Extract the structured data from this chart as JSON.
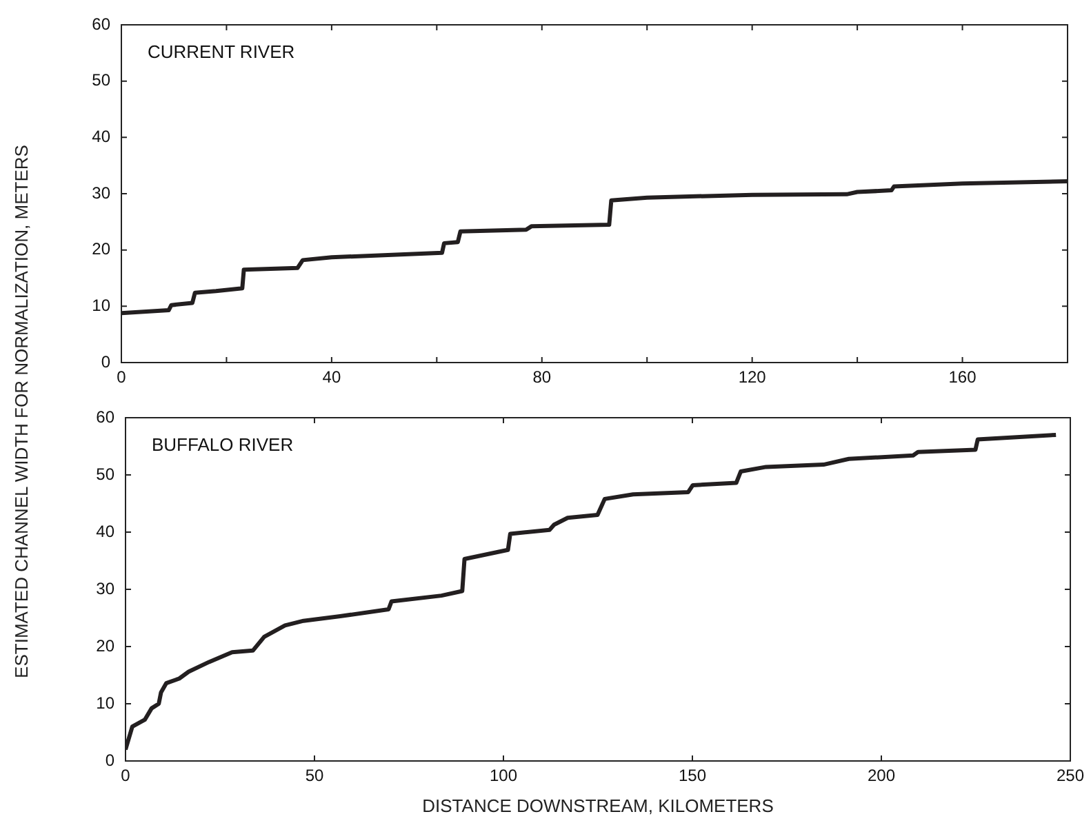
{
  "chart_data": [
    {
      "type": "line",
      "ylabel": "ESTIMATED CHANNEL WIDTH FOR NORMALIZATION, METERS",
      "annotations": [
        "CURRENT RIVER"
      ],
      "marker": "none",
      "xlim": [
        0,
        180
      ],
      "xticks": [
        0,
        {
          "value": 20,
          "label": null
        },
        40,
        {
          "value": 60,
          "label": null
        },
        80,
        {
          "value": 100,
          "label": null
        },
        120,
        {
          "value": 140,
          "label": null
        },
        160
      ],
      "ylim": [
        0,
        60
      ],
      "yticks": [
        0,
        10,
        20,
        30,
        40,
        50,
        60
      ],
      "series": [
        {
          "color": "#231f20",
          "x": [
            0,
            9,
            9.5,
            13.5,
            14,
            18,
            23,
            23.3,
            33.5,
            34.5,
            40,
            61,
            61.4,
            64,
            64.5,
            77,
            78,
            92.8,
            93.2,
            100,
            120,
            138,
            140,
            146.5,
            147,
            160,
            180
          ],
          "values": [
            8.8,
            9.3,
            10.2,
            10.6,
            12.4,
            12.7,
            13.2,
            16.5,
            16.8,
            18.2,
            18.7,
            19.5,
            21.2,
            21.4,
            23.3,
            23.6,
            24.2,
            24.5,
            28.8,
            29.3,
            29.8,
            29.9,
            30.3,
            30.6,
            31.3,
            31.8,
            32.2
          ]
        }
      ]
    },
    {
      "type": "line",
      "xlabel": "DISTANCE DOWNSTREAM, KILOMETERS",
      "annotations": [
        "BUFFALO RIVER"
      ],
      "marker": "none",
      "xlim": [
        0,
        250
      ],
      "xticks": [
        0,
        50,
        100,
        150,
        200,
        250
      ],
      "ylim": [
        0,
        60
      ],
      "yticks": [
        0,
        10,
        20,
        30,
        40,
        50,
        60
      ],
      "series": [
        {
          "color": "#231f20",
          "x": [
            0,
            1.8,
            5.1,
            6.9,
            8.8,
            9.4,
            10.8,
            14.2,
            16.7,
            22.1,
            28.2,
            33.7,
            36.7,
            42.2,
            47.1,
            56.8,
            69.6,
            70.4,
            83.6,
            89.1,
            89.7,
            101.2,
            101.8,
            112.2,
            113.4,
            117,
            124.9,
            126.8,
            134.3,
            148.9,
            150.1,
            161.6,
            162.8,
            169.5,
            184.7,
            191.4,
            208.4,
            209.7,
            224.9,
            225.5,
            246.2
          ],
          "values": [
            2.0,
            6.0,
            7.2,
            9.2,
            10.0,
            12.0,
            13.6,
            14.4,
            15.6,
            17.3,
            19.0,
            19.3,
            21.7,
            23.7,
            24.5,
            25.3,
            26.5,
            27.9,
            28.9,
            29.7,
            35.3,
            36.9,
            39.7,
            40.4,
            41.3,
            42.5,
            43.0,
            45.8,
            46.6,
            47.0,
            48.2,
            48.6,
            50.6,
            51.4,
            51.8,
            52.8,
            53.4,
            54.0,
            54.4,
            56.2,
            57.0
          ]
        }
      ]
    }
  ]
}
